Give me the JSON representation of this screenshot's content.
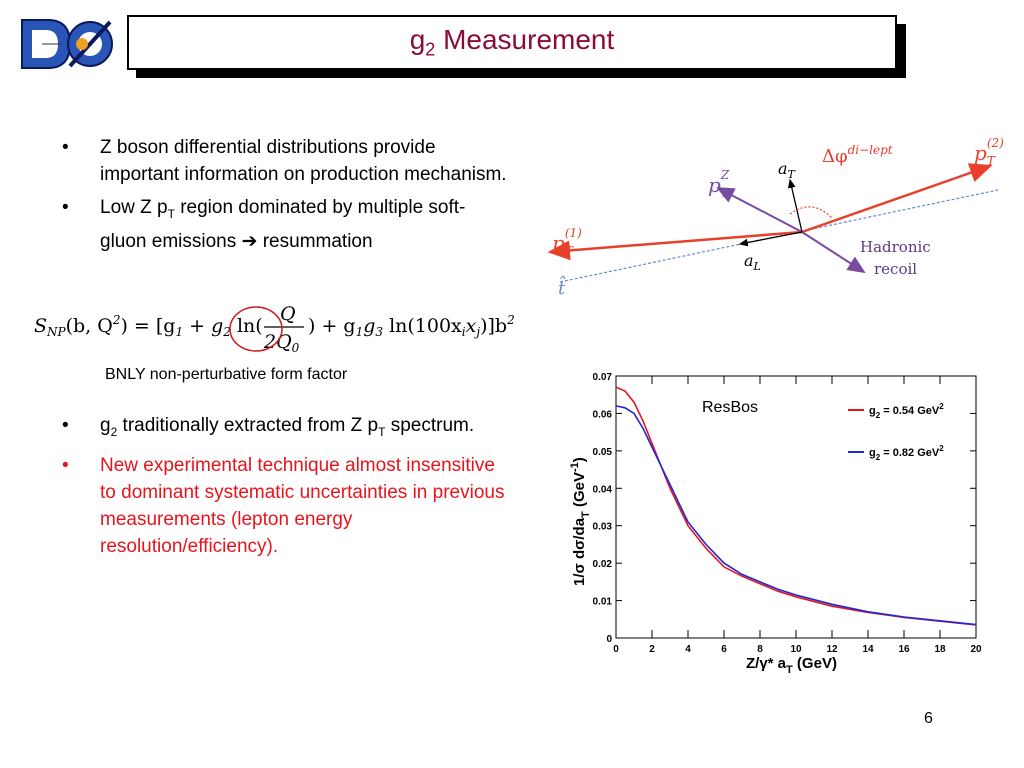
{
  "title": {
    "main": "g",
    "sub": "2",
    "rest": " Measurement"
  },
  "bullets_top": [
    {
      "text": "Z boson differential distributions provide important information on production mechanism."
    },
    {
      "pre": "Low Z p",
      "sub": "T",
      "post": " region dominated by multiple soft-gluon emissions ",
      "arrow": "➔",
      "post2": " resummation"
    }
  ],
  "formula": {
    "lhs": "S",
    "lhs_sub": "NP",
    "lhs_args": "(b, Q",
    "lhs_sup": "2",
    "lhs_end": ") = [g",
    "g1": "1",
    "plus1": " + ",
    "g2": "g",
    "g2_sub": "2",
    "ln": " ln(",
    "num": "Q",
    "den": "2Q",
    "den_sub": "0",
    "close": ") + g",
    "g1b": "1",
    "g3": "g",
    "g3_sub": "3",
    "ln2": " ln(100x",
    "xi": "i",
    "xj": "x",
    "xj_sub": "j",
    "end": ")]b",
    "end_sup": "2"
  },
  "caption": "BNLY non-perturbative form factor",
  "bullets_bottom": [
    {
      "pre": "g",
      "sub": "2",
      "mid": " traditionally extracted from Z p",
      "sub2": "T",
      "post": " spectrum."
    },
    {
      "text": "New experimental technique almost insensitive to dominant systematic uncertainties in previous measurements (lepton energy resolution/efficiency).",
      "color": "#e8141c"
    }
  ],
  "diagram": {
    "labels": {
      "pt2": "p",
      "pt2_sub": "T",
      "pt2_sup": "(2)",
      "pt1": "p",
      "pt1_sub": "T",
      "pt1_sup": "(1)",
      "ptz": "p",
      "ptz_sub": "T",
      "ptz_sup": "Z",
      "at": "a",
      "at_sub": "T",
      "al": "a",
      "al_sub": "L",
      "that": "t̂",
      "dphi": "Δφ",
      "dphi_sup": "di−lept",
      "hadronic": "Hadronic",
      "recoil": "recoil"
    },
    "colors": {
      "lepton": "#e8402a",
      "recoil": "#7a4aa0",
      "thrust": "#6a8ad0",
      "dphi": "#e83a2a"
    }
  },
  "chart_data": {
    "type": "line",
    "annotation": "ResBos",
    "xlabel": "Z/γ* a",
    "xlabel_sub": "T",
    "xlabel_unit": " (GeV)",
    "ylabel": "1/σ dσ/da",
    "ylabel_sub": "T",
    "ylabel_unit": " (GeV",
    "ylabel_sup": "-1",
    "ylabel_close": ")",
    "xlim": [
      0,
      20
    ],
    "ylim": [
      0,
      0.07
    ],
    "xticks": [
      "0",
      "2",
      "4",
      "6",
      "8",
      "10",
      "12",
      "14",
      "16",
      "18",
      "20"
    ],
    "yticks": [
      "0",
      "0.01",
      "0.02",
      "0.03",
      "0.04",
      "0.05",
      "0.06",
      "0.07"
    ],
    "legend_position": "top-right",
    "series": [
      {
        "name": "g2 = 0.54 GeV2",
        "label_pre": "g",
        "label_sub": "2",
        "label_mid": " = 0.54 GeV",
        "label_sup": "2",
        "color": "#e8141c",
        "x": [
          0,
          0.5,
          1,
          1.5,
          2,
          2.5,
          3,
          3.5,
          4,
          5,
          6,
          7,
          8,
          9,
          10,
          12,
          14,
          16,
          18,
          20
        ],
        "y": [
          0.067,
          0.066,
          0.063,
          0.058,
          0.052,
          0.046,
          0.04,
          0.035,
          0.03,
          0.024,
          0.019,
          0.0165,
          0.0145,
          0.0125,
          0.011,
          0.0085,
          0.0068,
          0.0055,
          0.0045,
          0.0035
        ]
      },
      {
        "name": "g2 = 0.82 GeV2",
        "label_pre": "g",
        "label_sub": "2",
        "label_mid": " = 0.82 GeV",
        "label_sup": "2",
        "color": "#1c2ad8",
        "x": [
          0,
          0.5,
          1,
          1.5,
          2,
          2.5,
          3,
          3.5,
          4,
          5,
          6,
          7,
          8,
          9,
          10,
          12,
          14,
          16,
          18,
          20
        ],
        "y": [
          0.062,
          0.0615,
          0.06,
          0.056,
          0.051,
          0.046,
          0.041,
          0.036,
          0.031,
          0.025,
          0.02,
          0.017,
          0.015,
          0.013,
          0.0115,
          0.009,
          0.007,
          0.0056,
          0.0046,
          0.0036
        ]
      }
    ]
  },
  "page_number": "6"
}
